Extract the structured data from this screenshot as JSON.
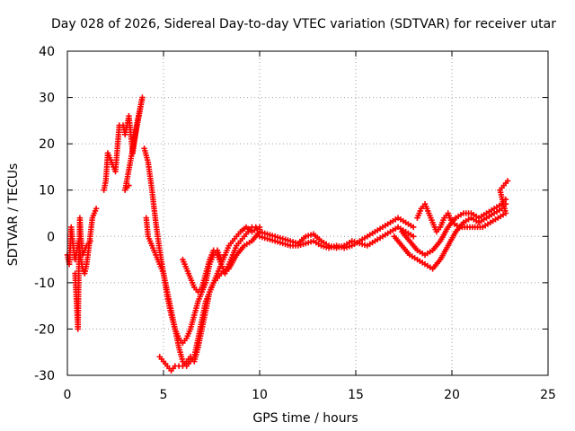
{
  "chart_data": {
    "type": "scatter",
    "title": "Day 028 of 2026, Sidereal Day-to-day VTEC variation (SDTVAR) for receiver utar",
    "xlabel": "GPS time / hours",
    "ylabel": "SDTVAR / TECUs",
    "xlim": [
      0,
      25
    ],
    "ylim": [
      -30,
      40
    ],
    "xticks": [
      0,
      5,
      10,
      15,
      20,
      25
    ],
    "yticks": [
      -30,
      -20,
      -10,
      0,
      10,
      20,
      30,
      40
    ],
    "grid": true,
    "marker": "+",
    "color": "#ff0000",
    "series": [
      {
        "name": "trace-a",
        "points": [
          [
            0.0,
            -4
          ],
          [
            0.1,
            -6
          ],
          [
            0.2,
            2
          ],
          [
            0.3,
            -2
          ],
          [
            0.4,
            -5
          ],
          [
            0.5,
            -3
          ],
          [
            0.6,
            -1
          ],
          [
            0.7,
            -5
          ],
          [
            0.8,
            -7
          ],
          [
            0.9,
            -8
          ],
          [
            1.0,
            -6
          ],
          [
            1.1,
            -3
          ],
          [
            1.3,
            4
          ],
          [
            1.5,
            6
          ]
        ]
      },
      {
        "name": "trace-b",
        "points": [
          [
            0.4,
            -8
          ],
          [
            0.45,
            -12
          ],
          [
            0.5,
            -16
          ],
          [
            0.55,
            -20
          ],
          [
            0.6,
            -6
          ],
          [
            0.65,
            4
          ],
          [
            0.7,
            0
          ],
          [
            0.8,
            -4
          ],
          [
            1.0,
            -2
          ],
          [
            1.2,
            -1
          ]
        ]
      },
      {
        "name": "trace-c",
        "points": [
          [
            1.9,
            10
          ],
          [
            2.0,
            12
          ],
          [
            2.1,
            18
          ],
          [
            2.3,
            16
          ],
          [
            2.5,
            14
          ],
          [
            2.7,
            24
          ],
          [
            2.9,
            24
          ],
          [
            3.0,
            22
          ],
          [
            3.1,
            24
          ],
          [
            3.2,
            26
          ],
          [
            3.4,
            18
          ],
          [
            3.6,
            24
          ],
          [
            3.8,
            28
          ],
          [
            3.9,
            30
          ],
          [
            3.0,
            10
          ],
          [
            3.2,
            11
          ]
        ]
      },
      {
        "name": "trace-d",
        "points": [
          [
            4.0,
            19
          ],
          [
            4.2,
            16
          ],
          [
            4.4,
            10
          ],
          [
            4.6,
            3
          ],
          [
            4.8,
            -3
          ],
          [
            5.0,
            -8
          ],
          [
            5.2,
            -13
          ],
          [
            5.4,
            -17
          ],
          [
            5.6,
            -20
          ],
          [
            5.8,
            -22
          ],
          [
            6.0,
            -23
          ],
          [
            6.2,
            -22
          ],
          [
            6.4,
            -20
          ],
          [
            6.6,
            -17
          ],
          [
            6.8,
            -14
          ],
          [
            7.0,
            -12
          ],
          [
            7.2,
            -10
          ],
          [
            7.4,
            -6
          ],
          [
            7.6,
            -4
          ],
          [
            7.8,
            -3
          ],
          [
            8.0,
            -5
          ],
          [
            8.2,
            -4
          ]
        ]
      },
      {
        "name": "trace-e",
        "points": [
          [
            4.1,
            4
          ],
          [
            4.2,
            0
          ],
          [
            4.4,
            -2
          ],
          [
            4.6,
            -4
          ],
          [
            4.8,
            -6
          ],
          [
            5.0,
            -8
          ],
          [
            5.2,
            -12
          ],
          [
            5.4,
            -16
          ],
          [
            5.6,
            -20
          ],
          [
            5.8,
            -24
          ],
          [
            6.0,
            -27
          ],
          [
            6.2,
            -28
          ],
          [
            6.4,
            -27
          ],
          [
            6.6,
            -26
          ],
          [
            6.8,
            -22
          ],
          [
            7.0,
            -18
          ],
          [
            7.2,
            -14
          ],
          [
            7.4,
            -12
          ],
          [
            7.6,
            -10
          ],
          [
            7.8,
            -9
          ],
          [
            8.0,
            -8
          ],
          [
            8.4,
            -7
          ],
          [
            8.8,
            -4
          ],
          [
            9.2,
            -2
          ],
          [
            9.6,
            -1
          ],
          [
            10.0,
            1
          ]
        ]
      },
      {
        "name": "trace-f",
        "points": [
          [
            4.8,
            -26
          ],
          [
            5.0,
            -27
          ],
          [
            5.2,
            -28
          ],
          [
            5.4,
            -29
          ],
          [
            5.6,
            -28
          ],
          [
            5.8,
            -28
          ],
          [
            6.0,
            -28
          ],
          [
            6.2,
            -27
          ],
          [
            6.4,
            -26
          ],
          [
            6.6,
            -27
          ],
          [
            6.8,
            -24
          ],
          [
            7.0,
            -20
          ],
          [
            7.2,
            -16
          ],
          [
            7.4,
            -12
          ],
          [
            7.6,
            -10
          ],
          [
            7.8,
            -8
          ],
          [
            8.0,
            -6
          ],
          [
            8.2,
            -4
          ],
          [
            8.4,
            -2
          ],
          [
            8.6,
            -1
          ],
          [
            8.8,
            0
          ],
          [
            9.0,
            1
          ],
          [
            9.3,
            2
          ],
          [
            9.6,
            1
          ],
          [
            10.0,
            2
          ]
        ]
      },
      {
        "name": "trace-g",
        "points": [
          [
            6.0,
            -5
          ],
          [
            6.2,
            -7
          ],
          [
            6.4,
            -9
          ],
          [
            6.6,
            -11
          ],
          [
            6.8,
            -12
          ],
          [
            7.0,
            -11
          ],
          [
            7.2,
            -8
          ],
          [
            7.4,
            -5
          ],
          [
            7.6,
            -3
          ],
          [
            7.8,
            -4
          ],
          [
            8.0,
            -6
          ],
          [
            8.2,
            -8
          ],
          [
            8.4,
            -6
          ],
          [
            8.6,
            -4
          ],
          [
            8.8,
            -2
          ],
          [
            9.0,
            -1
          ],
          [
            9.2,
            0
          ],
          [
            9.4,
            1
          ],
          [
            9.6,
            2
          ],
          [
            9.8,
            2
          ],
          [
            10.0,
            1.5
          ]
        ]
      },
      {
        "name": "trace-h",
        "points": [
          [
            10.0,
            1
          ],
          [
            10.4,
            0.5
          ],
          [
            10.8,
            0
          ],
          [
            11.2,
            -0.5
          ],
          [
            11.6,
            -1
          ],
          [
            12.0,
            -1.5
          ],
          [
            12.4,
            0
          ],
          [
            12.8,
            0.5
          ],
          [
            13.2,
            -1
          ],
          [
            13.6,
            -2
          ],
          [
            14.0,
            -2.5
          ],
          [
            14.4,
            -2
          ],
          [
            14.8,
            -1
          ],
          [
            15.2,
            -1.5
          ],
          [
            15.6,
            -2
          ],
          [
            16.0,
            -1
          ],
          [
            16.4,
            0
          ],
          [
            16.8,
            1
          ],
          [
            17.2,
            2
          ],
          [
            17.6,
            1
          ],
          [
            18.0,
            0
          ]
        ]
      },
      {
        "name": "trace-i",
        "points": [
          [
            10.0,
            0
          ],
          [
            10.4,
            -0.5
          ],
          [
            10.8,
            -1
          ],
          [
            11.2,
            -1.5
          ],
          [
            11.6,
            -2
          ],
          [
            12.0,
            -2
          ],
          [
            12.4,
            -1.5
          ],
          [
            12.8,
            -1
          ],
          [
            13.2,
            -2
          ],
          [
            13.6,
            -2.5
          ],
          [
            14.0,
            -2
          ],
          [
            14.4,
            -2.5
          ],
          [
            14.8,
            -2
          ],
          [
            15.2,
            -1
          ],
          [
            15.6,
            0
          ],
          [
            16.0,
            1
          ],
          [
            16.4,
            2
          ],
          [
            16.8,
            3
          ],
          [
            17.2,
            4
          ],
          [
            17.6,
            3
          ],
          [
            18.0,
            2
          ]
        ]
      },
      {
        "name": "trace-j",
        "points": [
          [
            17.0,
            0
          ],
          [
            17.4,
            -2
          ],
          [
            17.8,
            -4
          ],
          [
            18.2,
            -5
          ],
          [
            18.6,
            -6
          ],
          [
            19.0,
            -7
          ],
          [
            19.4,
            -5
          ],
          [
            19.8,
            -2
          ],
          [
            20.2,
            1
          ],
          [
            20.6,
            3
          ],
          [
            21.0,
            4
          ],
          [
            21.4,
            3
          ],
          [
            21.8,
            4
          ],
          [
            22.2,
            5
          ],
          [
            22.6,
            6
          ],
          [
            22.8,
            7
          ]
        ]
      },
      {
        "name": "trace-k",
        "points": [
          [
            17.4,
            1
          ],
          [
            17.8,
            -1
          ],
          [
            18.2,
            -3
          ],
          [
            18.6,
            -4
          ],
          [
            19.0,
            -3
          ],
          [
            19.4,
            -1
          ],
          [
            19.8,
            2
          ],
          [
            20.2,
            4
          ],
          [
            20.6,
            5
          ],
          [
            21.0,
            5
          ],
          [
            21.4,
            4
          ],
          [
            21.8,
            5
          ],
          [
            22.2,
            6
          ],
          [
            22.6,
            7
          ],
          [
            22.8,
            8
          ]
        ]
      },
      {
        "name": "trace-l",
        "points": [
          [
            18.2,
            4
          ],
          [
            18.4,
            6
          ],
          [
            18.6,
            7
          ],
          [
            18.8,
            5
          ],
          [
            19.0,
            3
          ],
          [
            19.2,
            1
          ],
          [
            19.4,
            2
          ],
          [
            19.6,
            4
          ],
          [
            19.8,
            5
          ],
          [
            20.0,
            3
          ],
          [
            20.4,
            2
          ],
          [
            20.8,
            2
          ],
          [
            21.2,
            2
          ],
          [
            21.6,
            2
          ],
          [
            22.0,
            3
          ],
          [
            22.4,
            4
          ],
          [
            22.8,
            5
          ],
          [
            22.5,
            10
          ],
          [
            22.7,
            11
          ],
          [
            22.9,
            12
          ]
        ]
      }
    ]
  }
}
